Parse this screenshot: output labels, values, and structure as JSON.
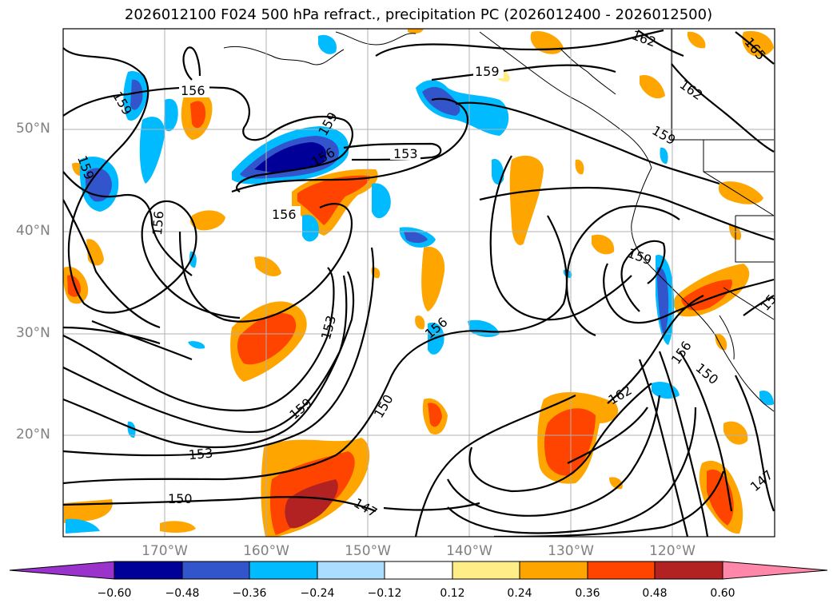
{
  "title": "2026012100 F024 500 hPa refract., precipitation PC (2026012400 - 2026012500)",
  "lat_labels": [
    "50°N",
    "40°N",
    "30°N",
    "20°N"
  ],
  "lon_labels": [
    "170°W",
    "160°W",
    "150°W",
    "140°W",
    "130°W",
    "120°W"
  ],
  "colorbar": {
    "ticks": [
      "−0.60",
      "−0.48",
      "−0.36",
      "−0.24",
      "−0.12",
      "0.12",
      "0.24",
      "0.36",
      "0.48",
      "0.60"
    ],
    "colors": [
      "#9933cc",
      "#000099",
      "#3355cc",
      "#00bbff",
      "#aaddff",
      "#ffffff",
      "#ffee88",
      "#ffa500",
      "#ff4400",
      "#b22222",
      "#ff88aa"
    ]
  },
  "contour_labels": [
    "159",
    "156",
    "159",
    "162",
    "162",
    "165",
    "159",
    "153",
    "159",
    "156",
    "159",
    "156",
    "156",
    "159",
    "153",
    "156",
    "150",
    "159",
    "156",
    "150",
    "153",
    "150",
    "147",
    "147",
    "15"
  ]
}
